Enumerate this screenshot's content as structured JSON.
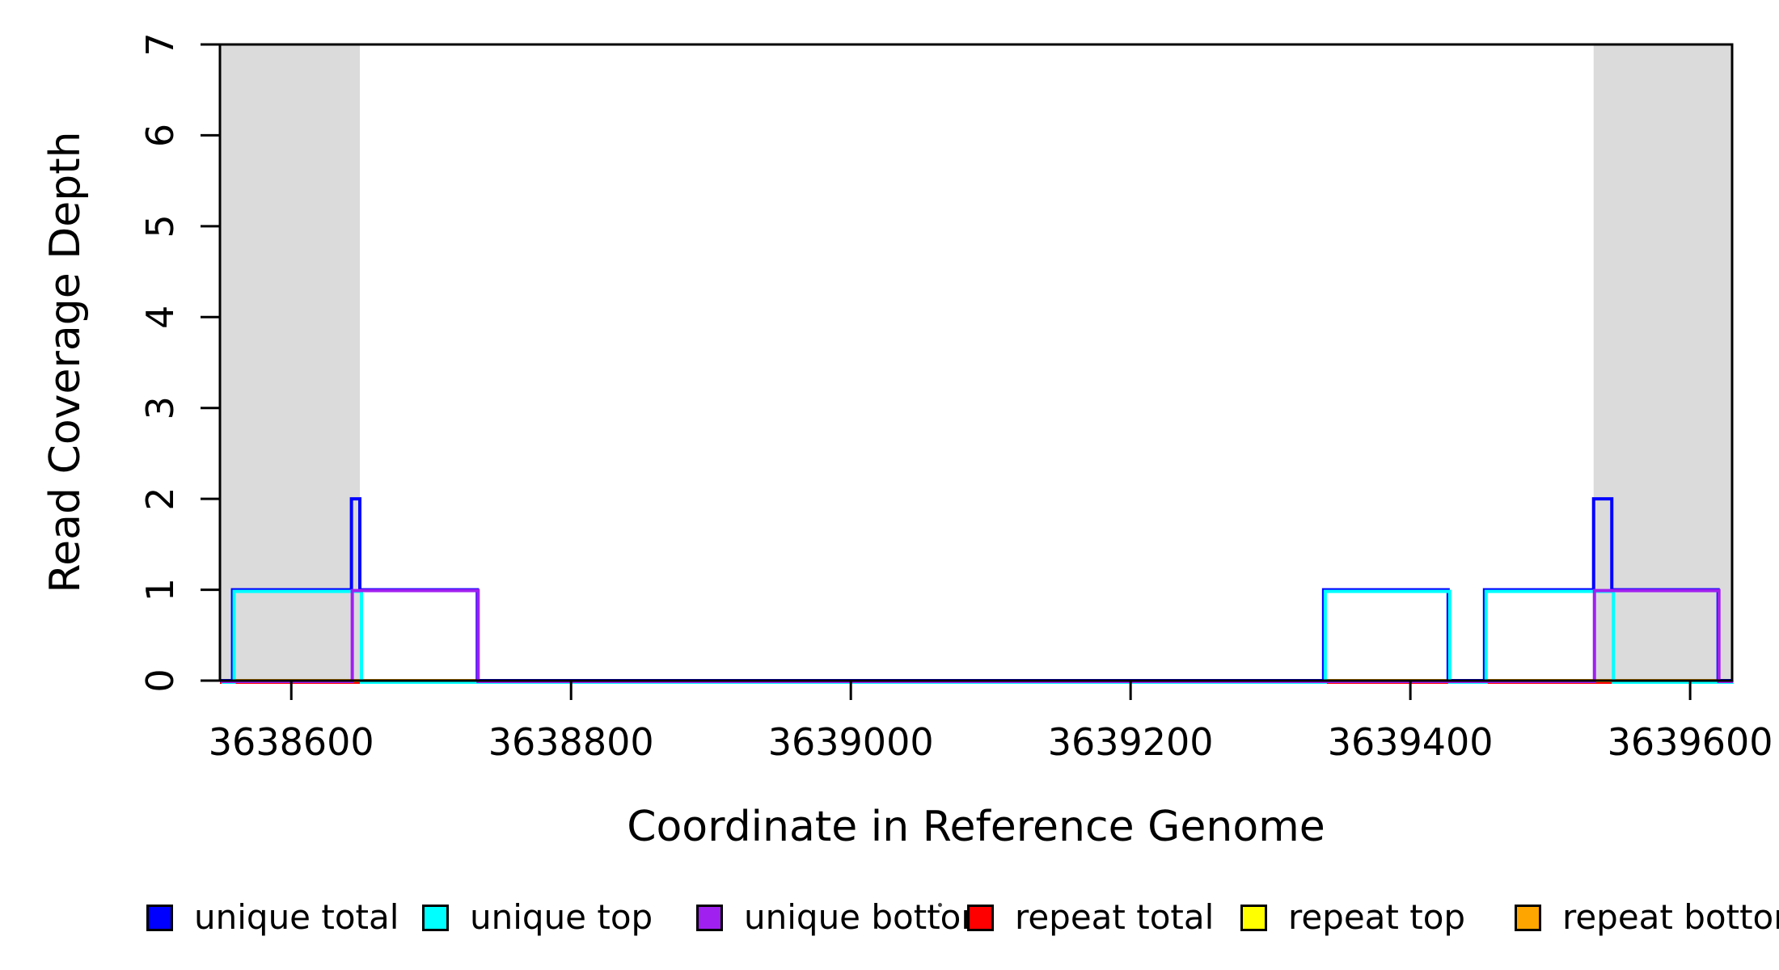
{
  "figure": {
    "background": "#ffffff",
    "plot_border_color": "#000000",
    "shade_color": "#DBDBDB"
  },
  "x_axis": {
    "title": "Coordinate in Reference Genome"
  },
  "y_axis": {
    "title": "Read Coverage Depth"
  },
  "legend": {
    "items": [
      {
        "label": "unique total",
        "color": "#0000FF"
      },
      {
        "label": "unique top",
        "color": "#00FFFF"
      },
      {
        "label": "unique bottom",
        "color": "#A020F0"
      },
      {
        "label": "repeat total",
        "color": "#FF0000"
      },
      {
        "label": "repeat top",
        "color": "#FFFF00"
      },
      {
        "label": "repeat bottom",
        "color": "#FFA500"
      }
    ]
  },
  "chart_data": {
    "type": "line",
    "subtype": "step-coverage",
    "title": "",
    "xlabel": "Coordinate in Reference Genome",
    "ylabel": "Read Coverage Depth",
    "xlim": [
      3638549,
      3639630
    ],
    "ylim": [
      0,
      7
    ],
    "x_ticks": [
      3638600,
      3638800,
      3639000,
      3639200,
      3639400,
      3639600
    ],
    "y_ticks": [
      0,
      1,
      2,
      3,
      4,
      5,
      6,
      7
    ],
    "grid": false,
    "legend_position": "bottom",
    "shaded_regions": [
      {
        "name": "flanking-repeat-left",
        "x0": 3638549,
        "x1": 3638649,
        "color": "#DBDBDB"
      },
      {
        "name": "flanking-repeat-right",
        "x0": 3639531,
        "x1": 3639630,
        "color": "#DBDBDB"
      }
    ],
    "series": [
      {
        "name": "repeat total",
        "color": "#FF0000",
        "baseline": 0,
        "steps": []
      },
      {
        "name": "repeat top",
        "color": "#FFFF00",
        "baseline": 0,
        "steps": []
      },
      {
        "name": "repeat bottom",
        "color": "#FFA500",
        "baseline": 0,
        "steps": []
      },
      {
        "name": "unique total",
        "color": "#0000FF",
        "baseline": 0,
        "steps": [
          [
            3638558,
            1
          ],
          [
            3638643,
            2
          ],
          [
            3638649,
            1
          ],
          [
            3638733,
            0
          ],
          [
            3639338,
            1
          ],
          [
            3639427,
            0
          ],
          [
            3639453,
            1
          ],
          [
            3639531,
            2
          ],
          [
            3639544,
            1
          ],
          [
            3639620,
            0
          ]
        ]
      },
      {
        "name": "unique top",
        "color": "#00FFFF",
        "baseline": 0,
        "steps": [
          [
            3638558,
            1
          ],
          [
            3638649,
            0
          ],
          [
            3639338,
            1
          ],
          [
            3639427,
            0
          ],
          [
            3639453,
            1
          ],
          [
            3639544,
            0
          ]
        ]
      },
      {
        "name": "unique bottom",
        "color": "#A020F0",
        "baseline": 0,
        "steps": [
          [
            3638643,
            1
          ],
          [
            3638733,
            0
          ],
          [
            3639531,
            1
          ],
          [
            3639620,
            0
          ]
        ]
      }
    ],
    "read_intervals": {
      "unique_top_reads": [
        [
          3638558,
          3638649
        ],
        [
          3639338,
          3639427
        ],
        [
          3639453,
          3639544
        ]
      ],
      "unique_bottom_reads": [
        [
          3638643,
          3638733
        ],
        [
          3639531,
          3639620
        ]
      ]
    }
  }
}
